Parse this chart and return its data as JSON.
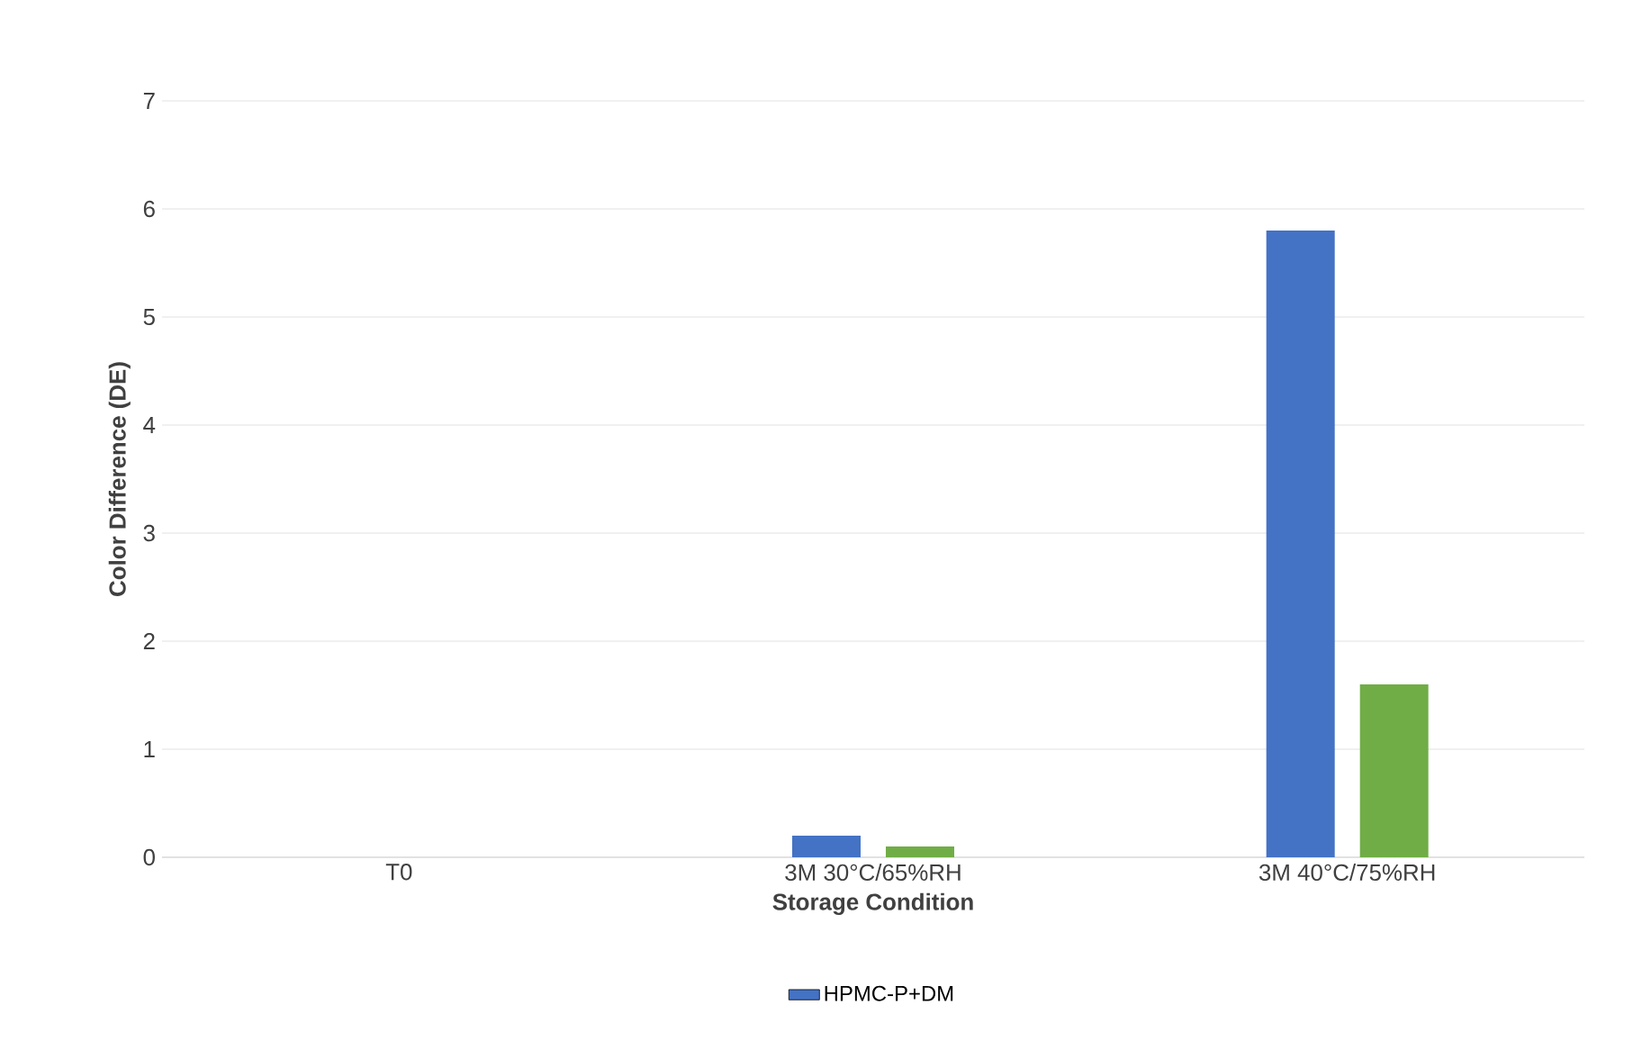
{
  "chart_data": {
    "type": "bar",
    "xlabel": "Storage Condition",
    "ylabel": "Color Difference (DE)",
    "categories": [
      "T0",
      "3M 30°C/65%RH",
      "3M 40°C/75%RH"
    ],
    "series": [
      {
        "name": "HPMC-P+DM",
        "color": "#4472c4",
        "values": [
          0,
          0.2,
          5.8
        ]
      },
      {
        "color": "#70ad47",
        "values": [
          0,
          0.1,
          1.6
        ]
      }
    ],
    "ylim": [
      0,
      7
    ],
    "yticks": [
      0,
      1,
      2,
      3,
      4,
      5,
      6,
      7
    ],
    "grid": "y",
    "legend": "bottom"
  }
}
